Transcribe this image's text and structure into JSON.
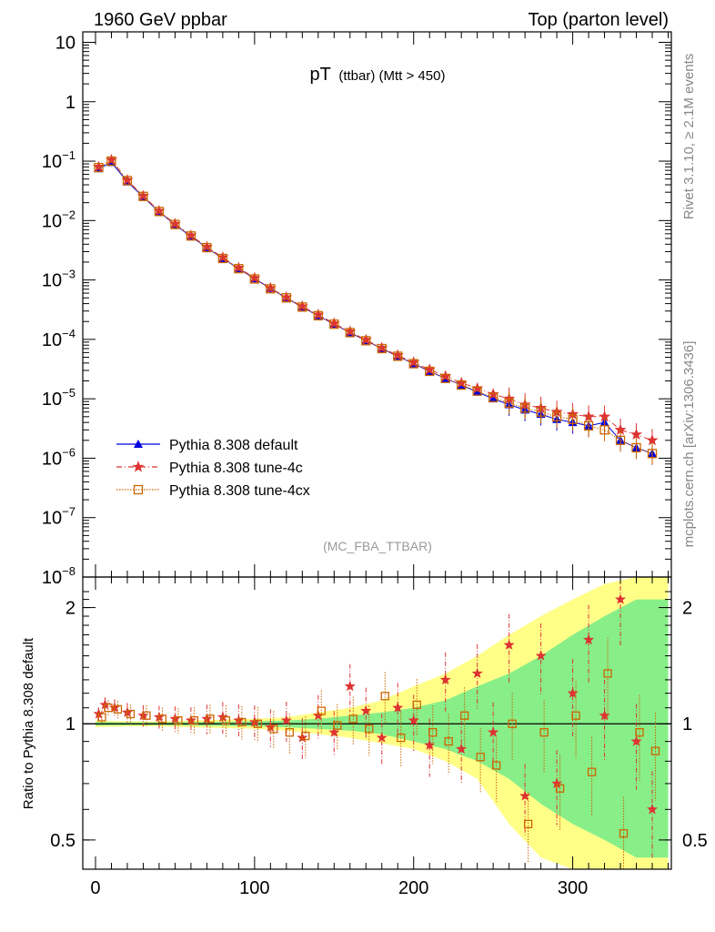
{
  "header": {
    "left": "1960 GeV ppbar",
    "right": "Top (parton level)"
  },
  "side_labels": {
    "rivet": "Rivet 3.1.10, ≥ 2.1M events",
    "mcplots": "mcplots.cern.ch [arXiv:1306.3436]"
  },
  "chart_data": [
    {
      "panel": "main",
      "type": "scatter",
      "title": "pT",
      "title_sub": "(ttbar) (Mtt > 450)",
      "watermark": "(MC_FBA_TTBAR)",
      "xlabel": "",
      "ylabel": "",
      "xlim": [
        -8,
        362
      ],
      "ylim": [
        1e-08,
        15
      ],
      "yscale": "log",
      "yticks": [
        {
          "value": 10,
          "label": "10"
        },
        {
          "value": 1,
          "label": "1"
        },
        {
          "value": 0.1,
          "label": "10",
          "exp": "−1"
        },
        {
          "value": 0.01,
          "label": "10",
          "exp": "−2"
        },
        {
          "value": 0.001,
          "label": "10",
          "exp": "−3"
        },
        {
          "value": 0.0001,
          "label": "10",
          "exp": "−4"
        },
        {
          "value": 1e-05,
          "label": "10",
          "exp": "−5"
        },
        {
          "value": 1e-06,
          "label": "10",
          "exp": "−6"
        },
        {
          "value": 1e-07,
          "label": "10",
          "exp": "−7"
        },
        {
          "value": 1e-08,
          "label": "10",
          "exp": "−8"
        }
      ],
      "legend_position": "bottom-left",
      "series": [
        {
          "name": "Pythia 8.308 default",
          "color": "#0000dd",
          "marker": "triangle",
          "line": "solid",
          "x": [
            2,
            10,
            20,
            30,
            40,
            50,
            60,
            70,
            80,
            90,
            100,
            110,
            120,
            130,
            140,
            150,
            160,
            170,
            180,
            190,
            200,
            210,
            220,
            230,
            240,
            250,
            260,
            270,
            280,
            290,
            300,
            310,
            320,
            330,
            340,
            350
          ],
          "y": [
            0.075,
            0.095,
            0.045,
            0.025,
            0.014,
            0.0085,
            0.0054,
            0.0035,
            0.0023,
            0.00155,
            0.00105,
            0.00072,
            0.0005,
            0.00035,
            0.00025,
            0.00018,
            0.00013,
            9.5e-05,
            7e-05,
            5.2e-05,
            3.9e-05,
            2.9e-05,
            2.2e-05,
            1.7e-05,
            1.3e-05,
            1e-05,
            8e-06,
            6.5e-06,
            5.5e-06,
            4.5e-06,
            4e-06,
            3.5e-06,
            4e-06,
            2e-06,
            1.5e-06,
            1.2e-06
          ]
        },
        {
          "name": "Pythia 8.308 tune-4c",
          "color": "#dd3333",
          "marker": "star",
          "line": "dashdot",
          "x": [
            2,
            10,
            20,
            30,
            40,
            50,
            60,
            70,
            80,
            90,
            100,
            110,
            120,
            130,
            140,
            150,
            160,
            170,
            180,
            190,
            200,
            210,
            220,
            230,
            240,
            250,
            260,
            270,
            280,
            290,
            300,
            310,
            320,
            330,
            340,
            350
          ],
          "y": [
            0.08,
            0.105,
            0.048,
            0.026,
            0.0145,
            0.0088,
            0.0056,
            0.0036,
            0.0024,
            0.0016,
            0.00108,
            0.00073,
            0.00051,
            0.00036,
            0.00026,
            0.000185,
            0.000135,
            9.8e-05,
            7.2e-05,
            5.4e-05,
            4.1e-05,
            3.1e-05,
            2.4e-05,
            1.85e-05,
            1.5e-05,
            1.2e-05,
            1e-05,
            8e-06,
            7e-06,
            6e-06,
            5.5e-06,
            5e-06,
            5e-06,
            3e-06,
            2.5e-06,
            2e-06
          ]
        },
        {
          "name": "Pythia 8.308 tune-4cx",
          "color": "#cc6600",
          "marker": "open-square",
          "line": "dotted",
          "x": [
            2,
            10,
            20,
            30,
            40,
            50,
            60,
            70,
            80,
            90,
            100,
            110,
            120,
            130,
            140,
            150,
            160,
            170,
            180,
            190,
            200,
            210,
            220,
            230,
            240,
            250,
            260,
            270,
            280,
            290,
            300,
            310,
            320,
            330,
            340,
            350
          ],
          "y": [
            0.078,
            0.1,
            0.047,
            0.0255,
            0.0142,
            0.0086,
            0.0055,
            0.0035,
            0.0023,
            0.00155,
            0.00104,
            0.00071,
            0.0005,
            0.00035,
            0.00025,
            0.00018,
            0.00013,
            9.5e-05,
            7e-05,
            5.2e-05,
            3.9e-05,
            2.9e-05,
            2.2e-05,
            1.7e-05,
            1.35e-05,
            1.05e-05,
            8.5e-06,
            7e-06,
            6e-06,
            5e-06,
            4.5e-06,
            3.5e-06,
            3e-06,
            2e-06,
            1.5e-06,
            1.2e-06
          ]
        }
      ]
    },
    {
      "panel": "ratio",
      "type": "scatter",
      "ylabel": "Ratio to Pythia 8.308 default",
      "xlim": [
        -8,
        362
      ],
      "ylim": [
        0.42,
        2.4
      ],
      "yscale": "log",
      "yticks": [
        {
          "value": 2,
          "label": "2"
        },
        {
          "value": 1,
          "label": "1"
        },
        {
          "value": 0.5,
          "label": "0.5"
        }
      ],
      "xticks": [
        {
          "value": 0,
          "label": "0"
        },
        {
          "value": 100,
          "label": "100"
        },
        {
          "value": 200,
          "label": "200"
        },
        {
          "value": 300,
          "label": "300"
        }
      ],
      "bands": [
        {
          "name": "stat-syst",
          "color": "#ffff88",
          "x": [
            0,
            20,
            40,
            60,
            80,
            100,
            120,
            140,
            160,
            180,
            200,
            220,
            240,
            260,
            280,
            300,
            320,
            340,
            360
          ],
          "lo": [
            0.98,
            0.985,
            0.985,
            0.98,
            0.975,
            0.97,
            0.96,
            0.94,
            0.92,
            0.89,
            0.86,
            0.8,
            0.72,
            0.55,
            0.45,
            0.42,
            0.42,
            0.42,
            0.42
          ],
          "hi": [
            1.02,
            1.015,
            1.015,
            1.02,
            1.025,
            1.03,
            1.04,
            1.07,
            1.1,
            1.15,
            1.25,
            1.35,
            1.5,
            1.7,
            1.9,
            2.1,
            2.3,
            2.4,
            2.4
          ]
        },
        {
          "name": "stat",
          "color": "#88ee88",
          "x": [
            0,
            20,
            40,
            60,
            80,
            100,
            120,
            140,
            160,
            180,
            200,
            220,
            240,
            260,
            280,
            300,
            320,
            340,
            360
          ],
          "lo": [
            0.99,
            0.992,
            0.992,
            0.99,
            0.988,
            0.985,
            0.98,
            0.97,
            0.96,
            0.94,
            0.9,
            0.86,
            0.8,
            0.72,
            0.62,
            0.55,
            0.5,
            0.45,
            0.45
          ],
          "hi": [
            1.01,
            1.008,
            1.008,
            1.01,
            1.012,
            1.015,
            1.02,
            1.03,
            1.05,
            1.07,
            1.1,
            1.15,
            1.25,
            1.35,
            1.5,
            1.7,
            1.9,
            2.1,
            2.1
          ]
        }
      ],
      "series": [
        {
          "name": "Pythia 8.308 tune-4c",
          "color": "#dd3333",
          "marker": "star",
          "x": [
            2,
            6,
            12,
            20,
            30,
            40,
            50,
            60,
            70,
            80,
            90,
            100,
            110,
            120,
            130,
            140,
            150,
            160,
            170,
            180,
            190,
            200,
            210,
            220,
            230,
            240,
            250,
            260,
            270,
            280,
            290,
            300,
            310,
            320,
            330,
            340,
            350
          ],
          "y": [
            1.06,
            1.12,
            1.1,
            1.07,
            1.05,
            1.04,
            1.03,
            1.02,
            1.03,
            1.04,
            1.02,
            1.01,
            0.98,
            1.02,
            0.92,
            1.05,
            0.95,
            1.25,
            1.08,
            0.92,
            1.1,
            1.02,
            0.88,
            1.3,
            0.86,
            1.35,
            0.95,
            1.6,
            0.65,
            1.5,
            0.7,
            1.2,
            1.65,
            1.05,
            2.1,
            0.9,
            0.6
          ]
        },
        {
          "name": "Pythia 8.308 tune-4cx",
          "color": "#cc6600",
          "marker": "open-square",
          "x": [
            4,
            8,
            14,
            22,
            32,
            42,
            52,
            62,
            72,
            82,
            92,
            102,
            112,
            122,
            132,
            142,
            152,
            162,
            172,
            182,
            192,
            202,
            212,
            222,
            232,
            242,
            252,
            262,
            272,
            282,
            292,
            302,
            312,
            322,
            332,
            342,
            352
          ],
          "y": [
            1.04,
            1.1,
            1.09,
            1.06,
            1.05,
            1.03,
            1.02,
            1.02,
            1.03,
            1.02,
            1.01,
            1.0,
            0.97,
            0.95,
            0.93,
            1.08,
            0.99,
            1.03,
            0.97,
            1.18,
            0.92,
            1.12,
            0.95,
            0.9,
            1.05,
            0.82,
            0.78,
            1.0,
            0.55,
            0.95,
            0.68,
            1.05,
            0.75,
            1.35,
            0.52,
            0.95,
            0.85
          ]
        }
      ],
      "reference_line": 1
    }
  ]
}
